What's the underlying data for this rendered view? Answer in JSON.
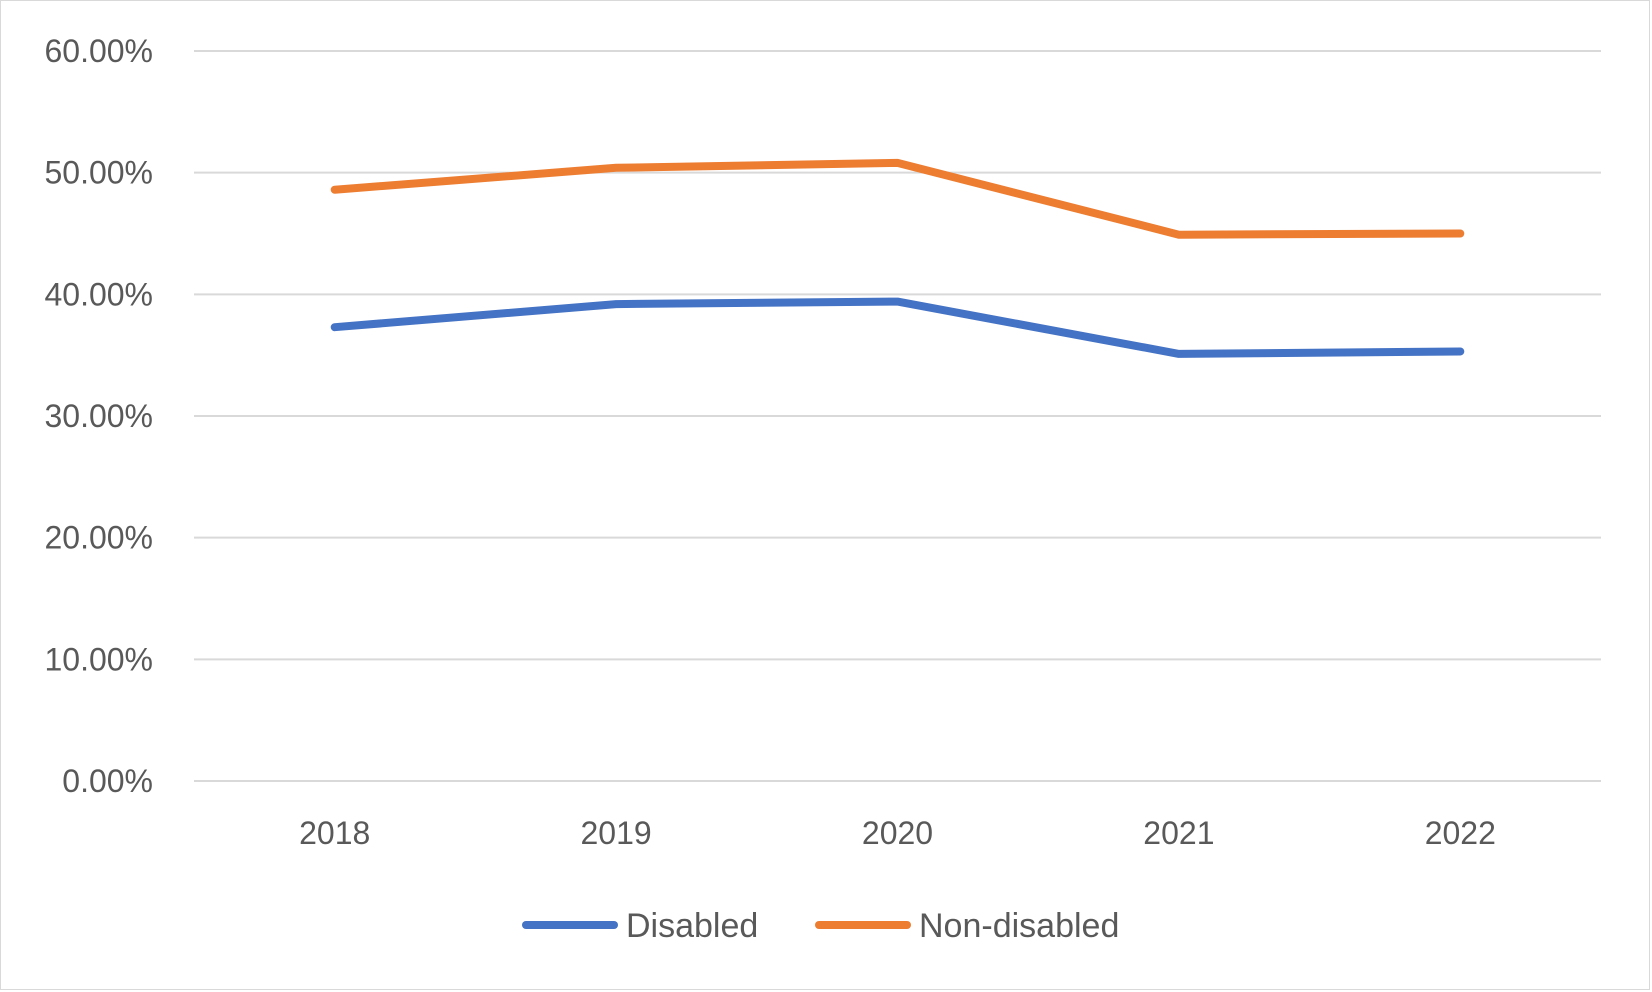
{
  "chart_data": {
    "type": "line",
    "title": "",
    "xlabel": "",
    "ylabel": "",
    "categories": [
      "2018",
      "2019",
      "2020",
      "2021",
      "2022"
    ],
    "series": [
      {
        "name": "Disabled",
        "color": "#4472C4",
        "values": [
          37.3,
          39.2,
          39.4,
          35.1,
          35.3
        ]
      },
      {
        "name": "Non-disabled",
        "color": "#ED7D31",
        "values": [
          48.6,
          50.4,
          50.8,
          44.9,
          45.0
        ]
      }
    ],
    "ylim": [
      0,
      60
    ],
    "yticks": [
      "0.00%",
      "10.00%",
      "20.00%",
      "30.00%",
      "40.00%",
      "50.00%",
      "60.00%"
    ],
    "grid": true,
    "legend_position": "bottom"
  }
}
